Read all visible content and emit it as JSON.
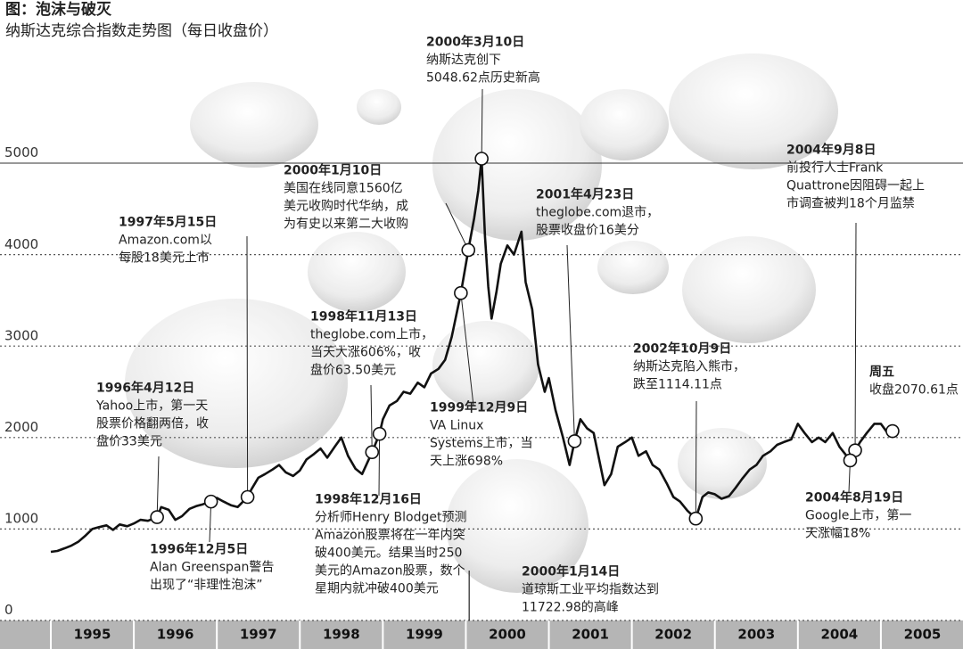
{
  "chart_data": {
    "type": "line",
    "title": "图：泡沫与破灭",
    "subtitle": "纳斯达克综合指数走势图（每日收盘价）",
    "xlim": [
      1995,
      2006
    ],
    "xticks": [
      {
        "value": 1995.5,
        "label": "1995"
      },
      {
        "value": 1996.5,
        "label": "1996"
      },
      {
        "value": 1997.5,
        "label": "1997"
      },
      {
        "value": 1998.5,
        "label": "1998"
      },
      {
        "value": 1999.5,
        "label": "1999"
      },
      {
        "value": 2000.5,
        "label": "2000"
      },
      {
        "value": 2001.5,
        "label": "2001"
      },
      {
        "value": 2002.5,
        "label": "2002"
      },
      {
        "value": 2003.5,
        "label": "2003"
      },
      {
        "value": 2004.5,
        "label": "2004"
      },
      {
        "value": 2005.5,
        "label": "2005"
      }
    ],
    "ylim": [
      0,
      5000
    ],
    "yticks": [
      0,
      1000,
      2000,
      3000,
      4000,
      5000
    ],
    "grid": true,
    "x": [
      1995.0,
      1995.08,
      1995.17,
      1995.25,
      1995.33,
      1995.42,
      1995.5,
      1995.58,
      1995.67,
      1995.75,
      1995.83,
      1995.92,
      1996.0,
      1996.08,
      1996.17,
      1996.28,
      1996.33,
      1996.42,
      1996.5,
      1996.58,
      1996.67,
      1996.75,
      1996.83,
      1996.93,
      1997.0,
      1997.08,
      1997.17,
      1997.25,
      1997.37,
      1997.42,
      1997.5,
      1997.58,
      1997.67,
      1997.75,
      1997.83,
      1997.92,
      1998.0,
      1998.08,
      1998.17,
      1998.25,
      1998.33,
      1998.42,
      1998.5,
      1998.58,
      1998.67,
      1998.75,
      1998.87,
      1998.96,
      1999.0,
      1999.08,
      1999.17,
      1999.25,
      1999.33,
      1999.42,
      1999.5,
      1999.58,
      1999.67,
      1999.75,
      1999.83,
      1999.94,
      2000.03,
      2000.1,
      2000.15,
      2000.19,
      2000.23,
      2000.27,
      2000.31,
      2000.37,
      2000.42,
      2000.5,
      2000.58,
      2000.67,
      2000.72,
      2000.8,
      2000.87,
      2000.95,
      2001.0,
      2001.08,
      2001.17,
      2001.25,
      2001.31,
      2001.38,
      2001.46,
      2001.54,
      2001.67,
      2001.75,
      2001.83,
      2001.92,
      2002.0,
      2002.08,
      2002.17,
      2002.25,
      2002.33,
      2002.42,
      2002.5,
      2002.58,
      2002.67,
      2002.77,
      2002.85,
      2002.92,
      2003.0,
      2003.08,
      2003.17,
      2003.25,
      2003.33,
      2003.42,
      2003.5,
      2003.58,
      2003.67,
      2003.75,
      2003.83,
      2003.92,
      2004.0,
      2004.08,
      2004.17,
      2004.25,
      2004.33,
      2004.42,
      2004.5,
      2004.63,
      2004.69,
      2004.75,
      2004.83,
      2004.92,
      2005.0,
      2005.08,
      2005.14
    ],
    "series": [
      {
        "color": "#111111",
        "values": [
          750,
          760,
          790,
          820,
          860,
          930,
          1000,
          1020,
          1040,
          990,
          1050,
          1030,
          1060,
          1100,
          1090,
          1130,
          1240,
          1210,
          1100,
          1140,
          1220,
          1250,
          1270,
          1300,
          1340,
          1300,
          1260,
          1240,
          1350,
          1440,
          1560,
          1600,
          1650,
          1700,
          1620,
          1580,
          1640,
          1760,
          1820,
          1880,
          1780,
          1900,
          2000,
          1800,
          1660,
          1600,
          1840,
          2040,
          2200,
          2350,
          2400,
          2500,
          2480,
          2600,
          2550,
          2700,
          2750,
          2850,
          3100,
          3580,
          4050,
          4400,
          4700,
          5048.62,
          4200,
          3650,
          3300,
          3600,
          3900,
          4100,
          4000,
          4250,
          3700,
          3400,
          2800,
          2500,
          2650,
          2300,
          2000,
          1700,
          1960,
          2200,
          2100,
          2050,
          1480,
          1600,
          1900,
          1950,
          2000,
          1800,
          1850,
          1700,
          1650,
          1500,
          1350,
          1300,
          1200,
          1114.11,
          1350,
          1400,
          1380,
          1330,
          1360,
          1450,
          1550,
          1650,
          1700,
          1800,
          1850,
          1920,
          1950,
          1980,
          2150,
          2050,
          1950,
          2000,
          1950,
          2050,
          1900,
          1750,
          1860,
          1950,
          2050,
          2150,
          2150,
          2050,
          2070.61
        ]
      }
    ],
    "annotations": [
      {
        "date": "2000年3月10日",
        "lines": [
          "纳斯达克创下",
          "5048.62点历史新高"
        ],
        "x": 2000.19,
        "y": 5048.62
      },
      {
        "date": "2000年1月10日",
        "lines": [
          "美国在线同意1560亿",
          "美元收购时代华纳，成",
          "为有史以来第二大收购"
        ],
        "x": 2000.03,
        "y": 4050
      },
      {
        "date": "1997年5月15日",
        "lines": [
          "Amazon.com以",
          "每股18美元上市"
        ],
        "x": 1997.37,
        "y": 1350
      },
      {
        "date": "1998年11月13日",
        "lines": [
          "theglobe.com上市，",
          "当天大涨606%，收",
          "盘价63.50美元"
        ],
        "x": 1998.87,
        "y": 1840
      },
      {
        "date": "1996年4月12日",
        "lines": [
          "Yahoo上市，第一天",
          "股票价格翻两倍，收",
          "盘价33美元"
        ],
        "x": 1996.28,
        "y": 1130
      },
      {
        "date": "1999年12月9日",
        "lines": [
          "VA Linux",
          "Systems上市，当",
          "天上涨698%"
        ],
        "x": 1999.94,
        "y": 3580
      },
      {
        "date": "1998年12月16日",
        "lines": [
          "分析师Henry Blodget预测",
          "Amazon股票将在一年内突",
          "破400美元。结果当时250",
          "美元的Amazon股票，数个",
          "星期内就冲破400美元"
        ],
        "x": 1998.96,
        "y": 2040
      },
      {
        "date": "1996年12月5日",
        "lines": [
          "Alan Greenspan警告",
          "出现了“非理性泡沫”"
        ],
        "x": 1996.93,
        "y": 1300
      },
      {
        "date": "2000年1月14日",
        "lines": [
          "道琼斯工业平均指数达到",
          "11722.98的高峰"
        ],
        "x": 2000.04
      },
      {
        "date": "2001年4月23日",
        "lines": [
          "theglobe.com退市，",
          "股票收盘价16美分"
        ],
        "x": 2001.31,
        "y": 1960
      },
      {
        "date": "2002年10月9日",
        "lines": [
          "纳斯达克陷入熊市，",
          "跌至1114.11点"
        ],
        "x": 2002.77,
        "y": 1114.11
      },
      {
        "date": "2004年9月8日",
        "lines": [
          "前投行人士Frank",
          "Quattrone因阻碍一起上",
          "市调查被判18个月监禁"
        ],
        "x": 2004.69,
        "y": 1860
      },
      {
        "date": "2004年8月19日",
        "lines": [
          "Google上市，第一",
          "天涨幅18%"
        ],
        "x": 2004.63,
        "y": 1750
      },
      {
        "date": "周五",
        "lines": [
          "收盘2070.61点"
        ],
        "x": 2005.14,
        "y": 2070.61
      }
    ]
  }
}
